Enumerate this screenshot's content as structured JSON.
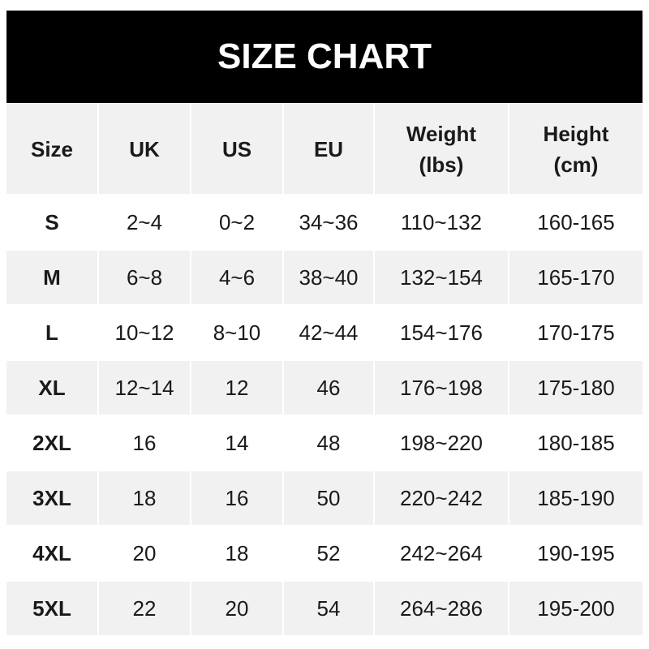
{
  "title": "SIZE CHART",
  "headers": [
    "Size",
    "UK",
    "US",
    "EU",
    "Weight\n(lbs)",
    "Height\n(cm)"
  ],
  "rows": [
    [
      "S",
      "2~4",
      "0~2",
      "34~36",
      "110~132",
      "160-165"
    ],
    [
      "M",
      "6~8",
      "4~6",
      "38~40",
      "132~154",
      "165-170"
    ],
    [
      "L",
      "10~12",
      "8~10",
      "42~44",
      "154~176",
      "170-175"
    ],
    [
      "XL",
      "12~14",
      "12",
      "46",
      "176~198",
      "175-180"
    ],
    [
      "2XL",
      "16",
      "14",
      "48",
      "198~220",
      "180-185"
    ],
    [
      "3XL",
      "18",
      "16",
      "50",
      "220~242",
      "185-190"
    ],
    [
      "4XL",
      "20",
      "18",
      "52",
      "242~264",
      "190-195"
    ],
    [
      "5XL",
      "22",
      "20",
      "54",
      "264~286",
      "195-200"
    ]
  ]
}
